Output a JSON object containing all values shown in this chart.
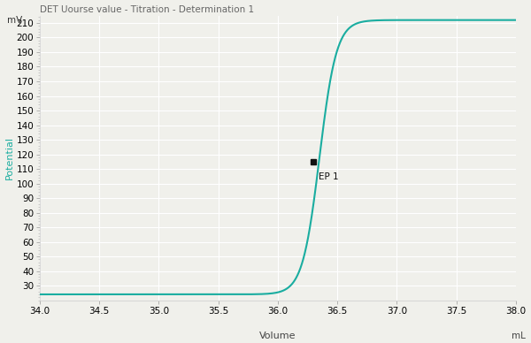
{
  "title": "DET Uourse value - Titration - Determination 1",
  "xlabel": "Volume",
  "xlabel_unit": "mL",
  "ylabel": "Potential",
  "ylabel_unit": "mV",
  "xlim": [
    34.0,
    38.0
  ],
  "ylim": [
    20,
    215
  ],
  "xticks": [
    34.0,
    34.5,
    35.0,
    35.5,
    36.0,
    36.5,
    37.0,
    37.5,
    38.0
  ],
  "yticks": [
    30,
    40,
    50,
    60,
    70,
    80,
    90,
    100,
    110,
    120,
    130,
    140,
    150,
    160,
    170,
    180,
    190,
    200,
    210
  ],
  "curve_color": "#1aada0",
  "ep1_x": 36.3,
  "ep1_y": 115,
  "ep1_label": "EP 1",
  "background_color": "#f0f0eb",
  "grid_color": "#ffffff",
  "title_fontsize": 7.5,
  "axis_fontsize": 7.5,
  "label_fontsize": 8,
  "ylabel_color": "#1aada0",
  "title_color": "#666666"
}
